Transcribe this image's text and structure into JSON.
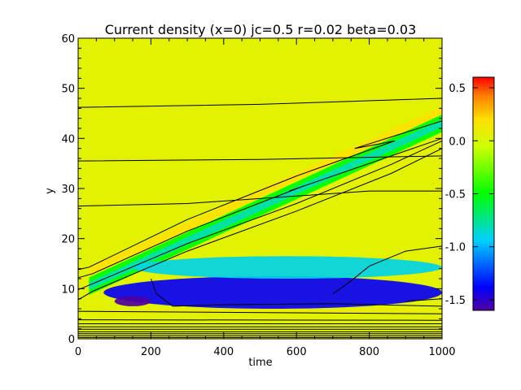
{
  "chart_data": {
    "type": "heatmap",
    "title": "Current density (x=0) jc=0.5 r=0.02 beta=0.03",
    "xlabel": "time",
    "ylabel": "y",
    "xlim": [
      0,
      1000
    ],
    "ylim": [
      0,
      60
    ],
    "x_ticks": [
      "0",
      "200",
      "400",
      "600",
      "800",
      "1000"
    ],
    "y_ticks": [
      "0",
      "10",
      "20",
      "30",
      "40",
      "50",
      "60"
    ],
    "colorbar": {
      "range": [
        -1.6,
        0.6
      ],
      "ticks": [
        "0.5",
        "0.0",
        "-0.5",
        "-1.0",
        "-1.5"
      ],
      "tick_values": [
        0.5,
        0.0,
        -0.5,
        -1.0,
        -1.5
      ],
      "colormap": "rainbow"
    },
    "background_value": 0.05,
    "features": [
      {
        "kind": "positive_ridge",
        "value": 0.2,
        "x": [
          30,
          1000
        ],
        "y_start": 13.5,
        "y_end": 45.5,
        "width": 1.6
      },
      {
        "kind": "negative_band",
        "value": -0.5,
        "x": [
          30,
          1000
        ],
        "y_start": 10.5,
        "y_end": 43,
        "width": 3.5
      },
      {
        "kind": "negative_band_core",
        "value": -0.8,
        "x": [
          30,
          1000
        ],
        "y_start": 10.5,
        "y_end": 43,
        "width": 1.5
      },
      {
        "kind": "negative_lobe",
        "value": -1.4,
        "x": [
          70,
          1000
        ],
        "y": [
          6,
          12.5
        ]
      },
      {
        "kind": "negative_minimum",
        "value": -1.6,
        "x": [
          100,
          200
        ],
        "y": [
          6.5,
          8.5
        ]
      },
      {
        "kind": "cyan_fringe",
        "value": -0.9,
        "x": [
          150,
          1000
        ],
        "y": [
          12,
          16.5
        ]
      },
      {
        "kind": "positive_strip",
        "value": 0.1,
        "x": [
          0,
          1000
        ],
        "y": [
          5,
          6
        ]
      }
    ],
    "contour_lines": [
      {
        "x": [
          0,
          500,
          1000
        ],
        "y": [
          46.2,
          46.8,
          48.0
        ]
      },
      {
        "x": [
          0,
          500,
          1000
        ],
        "y": [
          35.5,
          35.8,
          36.5
        ]
      },
      {
        "x": [
          0,
          300,
          600,
          800,
          1000
        ],
        "y": [
          26.5,
          27.0,
          28.5,
          29.5,
          29.5
        ]
      },
      {
        "x": [
          0,
          30,
          300,
          600,
          870,
          820,
          760,
          1000
        ],
        "y": [
          13.8,
          14.3,
          23.8,
          32.5,
          39.5,
          38.8,
          38.0,
          43.5
        ]
      },
      {
        "x": [
          0,
          40,
          300,
          620,
          580,
          1000
        ],
        "y": [
          12.2,
          13.0,
          21.5,
          30.5,
          29.5,
          40.0
        ]
      },
      {
        "x": [
          0,
          40,
          300,
          600,
          860,
          1000
        ],
        "y": [
          9.8,
          11.0,
          19.0,
          27.0,
          34.8,
          39.5
        ]
      },
      {
        "x": [
          0,
          40,
          300,
          600,
          860,
          1000
        ],
        "y": [
          7.8,
          9.5,
          17.5,
          25.5,
          33.0,
          38.0
        ]
      },
      {
        "x": [
          200,
          215,
          260,
          400,
          700,
          1000
        ],
        "y": [
          12.0,
          9.0,
          6.5,
          6.8,
          7.0,
          6.5
        ]
      },
      {
        "x": [
          700,
          740,
          800,
          900,
          1000
        ],
        "y": [
          9.0,
          11.0,
          14.5,
          17.5,
          18.5
        ]
      },
      {
        "x": [
          900,
          1000
        ],
        "y": [
          7.5,
          8.0
        ]
      },
      {
        "x": [
          0,
          1000
        ],
        "y": [
          5.5,
          5.0
        ]
      },
      {
        "x": [
          0,
          1000
        ],
        "y": [
          3.8,
          3.7
        ]
      },
      {
        "x": [
          0,
          1000
        ],
        "y": [
          3.0,
          3.0
        ]
      },
      {
        "x": [
          0,
          1000
        ],
        "y": [
          2.4,
          2.4
        ]
      },
      {
        "x": [
          0,
          1000
        ],
        "y": [
          1.9,
          1.9
        ]
      },
      {
        "x": [
          0,
          1000
        ],
        "y": [
          1.4,
          1.4
        ]
      },
      {
        "x": [
          0,
          1000
        ],
        "y": [
          1.0,
          1.0
        ]
      },
      {
        "x": [
          0,
          1000
        ],
        "y": [
          0.6,
          0.6
        ]
      },
      {
        "x": [
          0,
          1000
        ],
        "y": [
          0.25,
          0.25
        ]
      }
    ]
  }
}
